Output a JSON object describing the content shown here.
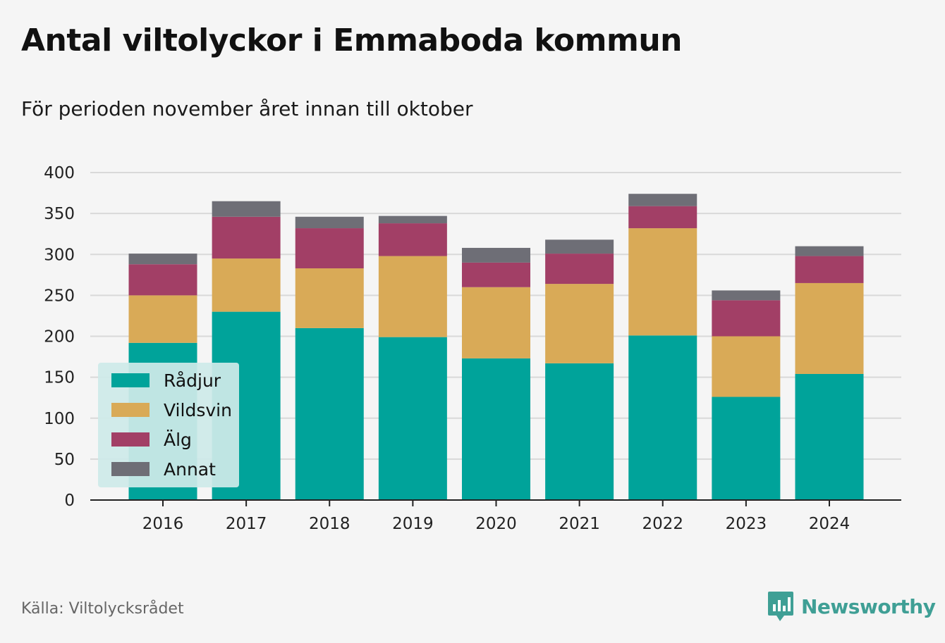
{
  "title": "Antal viltolyckor i Emmaboda kommun",
  "subtitle": "För perioden november året innan till oktober",
  "source": "Källa: Viltolycksrådet",
  "brand": "Newsworthy",
  "colors": {
    "Rådjur": "#00a39a",
    "Vildsvin": "#d9aa57",
    "Älg": "#a23f66",
    "Annat": "#6e6e76",
    "brand": "#3f9f95",
    "grid": "#d9d9d9",
    "axis": "#222222",
    "legend_bg": "#cdeae8"
  },
  "chart_data": {
    "type": "bar",
    "stacked": true,
    "categories": [
      "2016",
      "2017",
      "2018",
      "2019",
      "2020",
      "2021",
      "2022",
      "2023",
      "2024"
    ],
    "series": [
      {
        "name": "Rådjur",
        "values": [
          192,
          230,
          210,
          199,
          173,
          167,
          201,
          126,
          154
        ]
      },
      {
        "name": "Vildsvin",
        "values": [
          58,
          65,
          73,
          99,
          87,
          97,
          131,
          74,
          111
        ]
      },
      {
        "name": "Älg",
        "values": [
          38,
          51,
          49,
          40,
          30,
          37,
          27,
          44,
          33
        ]
      },
      {
        "name": "Annat",
        "values": [
          13,
          19,
          14,
          9,
          18,
          17,
          15,
          12,
          12
        ]
      }
    ],
    "ylim": [
      0,
      400
    ],
    "yticks": [
      0,
      50,
      100,
      150,
      200,
      250,
      300,
      350,
      400
    ],
    "grid": true,
    "legend_position": "bottom-left"
  }
}
